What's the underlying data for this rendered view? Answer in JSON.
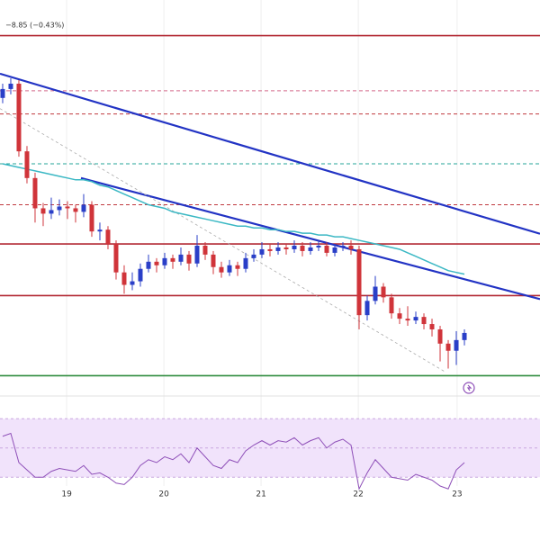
{
  "header": {
    "change": "−8.85 (−0.43%)"
  },
  "chart_data": {
    "type": "candlestick",
    "xlim": [
      -0.33,
      66.33
    ],
    "ylim": [
      1985,
      2215
    ],
    "xticks": [
      {
        "value": 7.9,
        "label": "19"
      },
      {
        "value": 19.9,
        "label": "20"
      },
      {
        "value": 31.9,
        "label": "21"
      },
      {
        "value": 43.9,
        "label": "22"
      },
      {
        "value": 56.1,
        "label": "23"
      }
    ],
    "up_color": "#2a3fc8",
    "down_color": "#d0343a",
    "candles": [
      [
        2160,
        2168,
        2157,
        2165
      ],
      [
        2165,
        2171,
        2162,
        2168
      ],
      [
        2168,
        2170,
        2127,
        2130
      ],
      [
        2130,
        2133,
        2112,
        2115
      ],
      [
        2115,
        2118,
        2090,
        2098
      ],
      [
        2098,
        2101,
        2088,
        2095
      ],
      [
        2095,
        2104,
        2092,
        2097
      ],
      [
        2097,
        2103,
        2094,
        2099
      ],
      [
        2099,
        2102,
        2092,
        2098
      ],
      [
        2098,
        2100,
        2090,
        2096
      ],
      [
        2096,
        2106,
        2093,
        2100
      ],
      [
        2100,
        2102,
        2082,
        2085
      ],
      [
        2085,
        2090,
        2080,
        2086
      ],
      [
        2086,
        2088,
        2075,
        2078
      ],
      [
        2078,
        2080,
        2058,
        2062
      ],
      [
        2062,
        2066,
        2050,
        2055
      ],
      [
        2055,
        2062,
        2052,
        2057
      ],
      [
        2057,
        2067,
        2054,
        2064
      ],
      [
        2064,
        2072,
        2062,
        2068
      ],
      [
        2068,
        2070,
        2062,
        2066
      ],
      [
        2066,
        2073,
        2064,
        2070
      ],
      [
        2070,
        2072,
        2064,
        2068
      ],
      [
        2068,
        2076,
        2066,
        2072
      ],
      [
        2072,
        2074,
        2063,
        2067
      ],
      [
        2067,
        2083,
        2065,
        2077
      ],
      [
        2077,
        2079,
        2069,
        2072
      ],
      [
        2072,
        2074,
        2061,
        2065
      ],
      [
        2065,
        2068,
        2059,
        2062
      ],
      [
        2062,
        2069,
        2060,
        2066
      ],
      [
        2066,
        2068,
        2060,
        2064
      ],
      [
        2064,
        2073,
        2062,
        2070
      ],
      [
        2070,
        2075,
        2068,
        2072
      ],
      [
        2072,
        2079,
        2070,
        2075
      ],
      [
        2075,
        2078,
        2071,
        2074
      ],
      [
        2074,
        2079,
        2072,
        2076
      ],
      [
        2076,
        2078,
        2072,
        2075
      ],
      [
        2075,
        2080,
        2073,
        2077
      ],
      [
        2077,
        2079,
        2071,
        2074
      ],
      [
        2074,
        2079,
        2072,
        2076
      ],
      [
        2076,
        2080,
        2074,
        2077
      ],
      [
        2077,
        2079,
        2071,
        2073
      ],
      [
        2073,
        2078,
        2071,
        2076
      ],
      [
        2076,
        2079,
        2074,
        2077
      ],
      [
        2077,
        2080,
        2072,
        2075
      ],
      [
        2075,
        2077,
        2030,
        2038
      ],
      [
        2038,
        2049,
        2035,
        2046
      ],
      [
        2046,
        2060,
        2044,
        2054
      ],
      [
        2054,
        2056,
        2045,
        2048
      ],
      [
        2048,
        2050,
        2036,
        2039
      ],
      [
        2039,
        2042,
        2033,
        2036
      ],
      [
        2036,
        2043,
        2032,
        2035
      ],
      [
        2035,
        2040,
        2033,
        2037
      ],
      [
        2037,
        2039,
        2030,
        2033
      ],
      [
        2033,
        2036,
        2026,
        2030
      ],
      [
        2030,
        2032,
        2012,
        2022
      ],
      [
        2022,
        2024,
        2008,
        2018
      ],
      [
        2018,
        2029,
        2010,
        2024
      ],
      [
        2024,
        2030,
        2021,
        2028
      ]
    ],
    "ma": {
      "color": "#3bb8c4",
      "values": [
        2123,
        2122,
        2121,
        2120,
        2119,
        2118,
        2117,
        2116,
        2115,
        2114,
        2114,
        2113,
        2111,
        2110,
        2108,
        2106,
        2104,
        2102,
        2100,
        2099,
        2098,
        2096,
        2095,
        2094,
        2093,
        2092,
        2091,
        2090,
        2089,
        2088,
        2088,
        2087,
        2087,
        2086,
        2086,
        2085,
        2085,
        2084,
        2084,
        2083,
        2083,
        2082,
        2082,
        2081,
        2080,
        2079,
        2078,
        2077,
        2076,
        2075,
        2073,
        2071,
        2069,
        2067,
        2065,
        2063,
        2062,
        2061
      ]
    },
    "levels": [
      {
        "value": 2195,
        "color": "#b22833",
        "dashed": false
      },
      {
        "value": 2164,
        "color": "#d46a8a",
        "dashed": true
      },
      {
        "value": 2151,
        "color": "#c0393f",
        "dashed": true
      },
      {
        "value": 2123,
        "color": "#26a69a",
        "dashed": true
      },
      {
        "value": 2100,
        "color": "#c0393f",
        "dashed": true
      },
      {
        "value": 2078,
        "color": "#b22833",
        "dashed": false
      },
      {
        "value": 2049,
        "color": "#b22833",
        "dashed": false
      },
      {
        "value": 2004,
        "color": "#2e8b3d",
        "dashed": false
      }
    ],
    "trendlines": [
      {
        "color": "#2233c4",
        "dashed": false,
        "x": [
          -0.33,
          66.33
        ],
        "y": [
          2173.6,
          2083.7
        ]
      },
      {
        "color": "#2233c4",
        "dashed": false,
        "x": [
          9.67,
          66.33
        ],
        "y": [
          2115,
          2047
        ]
      },
      {
        "color": "#aaaaaa",
        "dashed": true,
        "x": [
          -0.33,
          54.67
        ],
        "y": [
          2154,
          2006
        ]
      }
    ],
    "rsi": {
      "color": "#8e4fb8",
      "ylim": [
        0,
        100
      ],
      "band": [
        30,
        70
      ],
      "mid": 50,
      "band_color": "#f1e3fb",
      "values": [
        58,
        60,
        40,
        35,
        30,
        30,
        34,
        36,
        35,
        34,
        38,
        32,
        33,
        30,
        26,
        25,
        30,
        38,
        42,
        40,
        44,
        42,
        46,
        40,
        50,
        44,
        38,
        36,
        42,
        40,
        48,
        52,
        55,
        52,
        55,
        54,
        57,
        52,
        55,
        57,
        50,
        54,
        56,
        52,
        22,
        33,
        42,
        36,
        30,
        29,
        28,
        32,
        30,
        28,
        24,
        22,
        35,
        40
      ]
    }
  }
}
